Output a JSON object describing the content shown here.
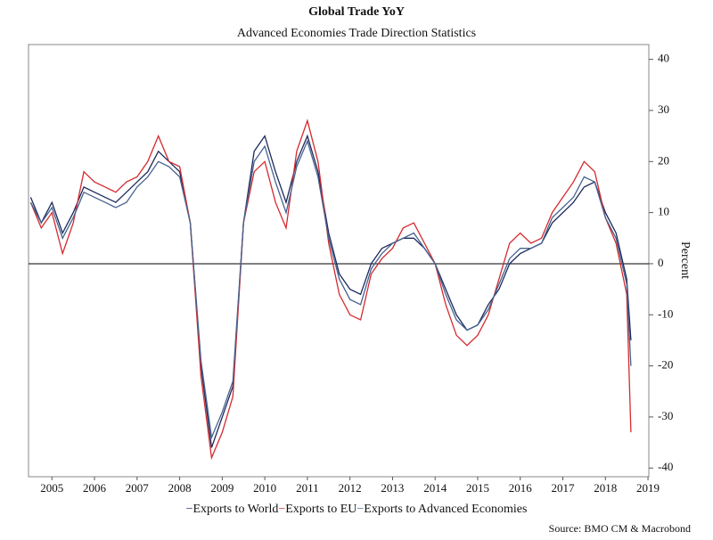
{
  "chart_data": {
    "type": "line",
    "title": "Global Trade YoY",
    "subtitle": "Advanced Economies Trade Direction Statistics",
    "ylabel": "Percent",
    "source": "Source: BMO CM & Macrobond",
    "x": [
      2005.0,
      2005.25,
      2005.5,
      2005.75,
      2006.0,
      2006.25,
      2006.5,
      2006.75,
      2007.0,
      2007.25,
      2007.5,
      2007.75,
      2008.0,
      2008.25,
      2008.5,
      2008.75,
      2009.0,
      2009.25,
      2009.5,
      2009.75,
      2010.0,
      2010.25,
      2010.5,
      2010.75,
      2011.0,
      2011.25,
      2011.5,
      2011.75,
      2012.0,
      2012.25,
      2012.5,
      2012.75,
      2013.0,
      2013.25,
      2013.5,
      2013.75,
      2014.0,
      2014.25,
      2014.5,
      2014.75,
      2015.0,
      2015.25,
      2015.5,
      2015.75,
      2016.0,
      2016.25,
      2016.5,
      2016.75,
      2017.0,
      2017.25,
      2017.5,
      2017.75,
      2018.0,
      2018.25,
      2018.5,
      2018.75,
      2019.0,
      2019.1
    ],
    "series": [
      {
        "name": "Exports to World",
        "color": "#1b2a5c",
        "values": [
          13,
          8,
          12,
          6,
          10,
          15,
          14,
          13,
          12,
          14,
          16,
          18,
          22,
          20,
          18,
          8,
          -20,
          -36,
          -30,
          -24,
          8,
          22,
          25,
          18,
          12,
          20,
          25,
          18,
          6,
          -2,
          -5,
          -6,
          0,
          3,
          4,
          5,
          5,
          3,
          0,
          -5,
          -10,
          -13,
          -12,
          -8,
          -5,
          0,
          2,
          3,
          4,
          8,
          10,
          12,
          15,
          16,
          10,
          6,
          -3,
          -15
        ]
      },
      {
        "name": "Exports to EU",
        "color": "#d42a2f",
        "values": [
          12,
          7,
          10,
          2,
          8,
          18,
          16,
          15,
          14,
          16,
          17,
          20,
          25,
          20,
          19,
          8,
          -22,
          -38,
          -33,
          -26,
          8,
          18,
          20,
          12,
          7,
          22,
          28,
          20,
          4,
          -6,
          -10,
          -11,
          -2,
          1,
          3,
          7,
          8,
          4,
          0,
          -8,
          -14,
          -16,
          -14,
          -10,
          -3,
          4,
          6,
          4,
          5,
          10,
          13,
          16,
          20,
          18,
          9,
          4,
          -6,
          -33
        ]
      },
      {
        "name": "Exports to Advanced Economies",
        "color": "#46638f",
        "values": [
          12,
          8,
          11,
          5,
          9,
          14,
          13,
          12,
          11,
          12,
          15,
          17,
          20,
          19,
          17,
          8,
          -19,
          -34,
          -29,
          -23,
          8,
          20,
          23,
          16,
          10,
          19,
          24,
          17,
          5,
          -3,
          -7,
          -8,
          -1,
          2,
          4,
          5,
          6,
          3,
          0,
          -6,
          -11,
          -13,
          -12,
          -9,
          -4,
          1,
          3,
          3,
          4,
          9,
          11,
          13,
          17,
          16,
          9,
          5,
          -4,
          -20
        ]
      }
    ],
    "xlim": [
      2004.95,
      2019.52
    ],
    "xticks": [
      {
        "value": 2005.5,
        "label": "2005"
      },
      {
        "value": 2006.5,
        "label": "2006"
      },
      {
        "value": 2007.5,
        "label": "2007"
      },
      {
        "value": 2008.5,
        "label": "2008"
      },
      {
        "value": 2009.5,
        "label": "2009"
      },
      {
        "value": 2010.5,
        "label": "2010"
      },
      {
        "value": 2011.5,
        "label": "2011"
      },
      {
        "value": 2012.5,
        "label": "2012"
      },
      {
        "value": 2013.5,
        "label": "2013"
      },
      {
        "value": 2014.5,
        "label": "2014"
      },
      {
        "value": 2015.5,
        "label": "2015"
      },
      {
        "value": 2016.5,
        "label": "2016"
      },
      {
        "value": 2017.5,
        "label": "2017"
      },
      {
        "value": 2018.5,
        "label": "2018"
      },
      {
        "value": 2019.5,
        "label": "2019"
      }
    ],
    "ylim": [
      -41.7,
      42.9
    ],
    "yticks": [
      -40,
      -30,
      -20,
      -10,
      0,
      10,
      20,
      30,
      40
    ],
    "zero_line": true
  }
}
